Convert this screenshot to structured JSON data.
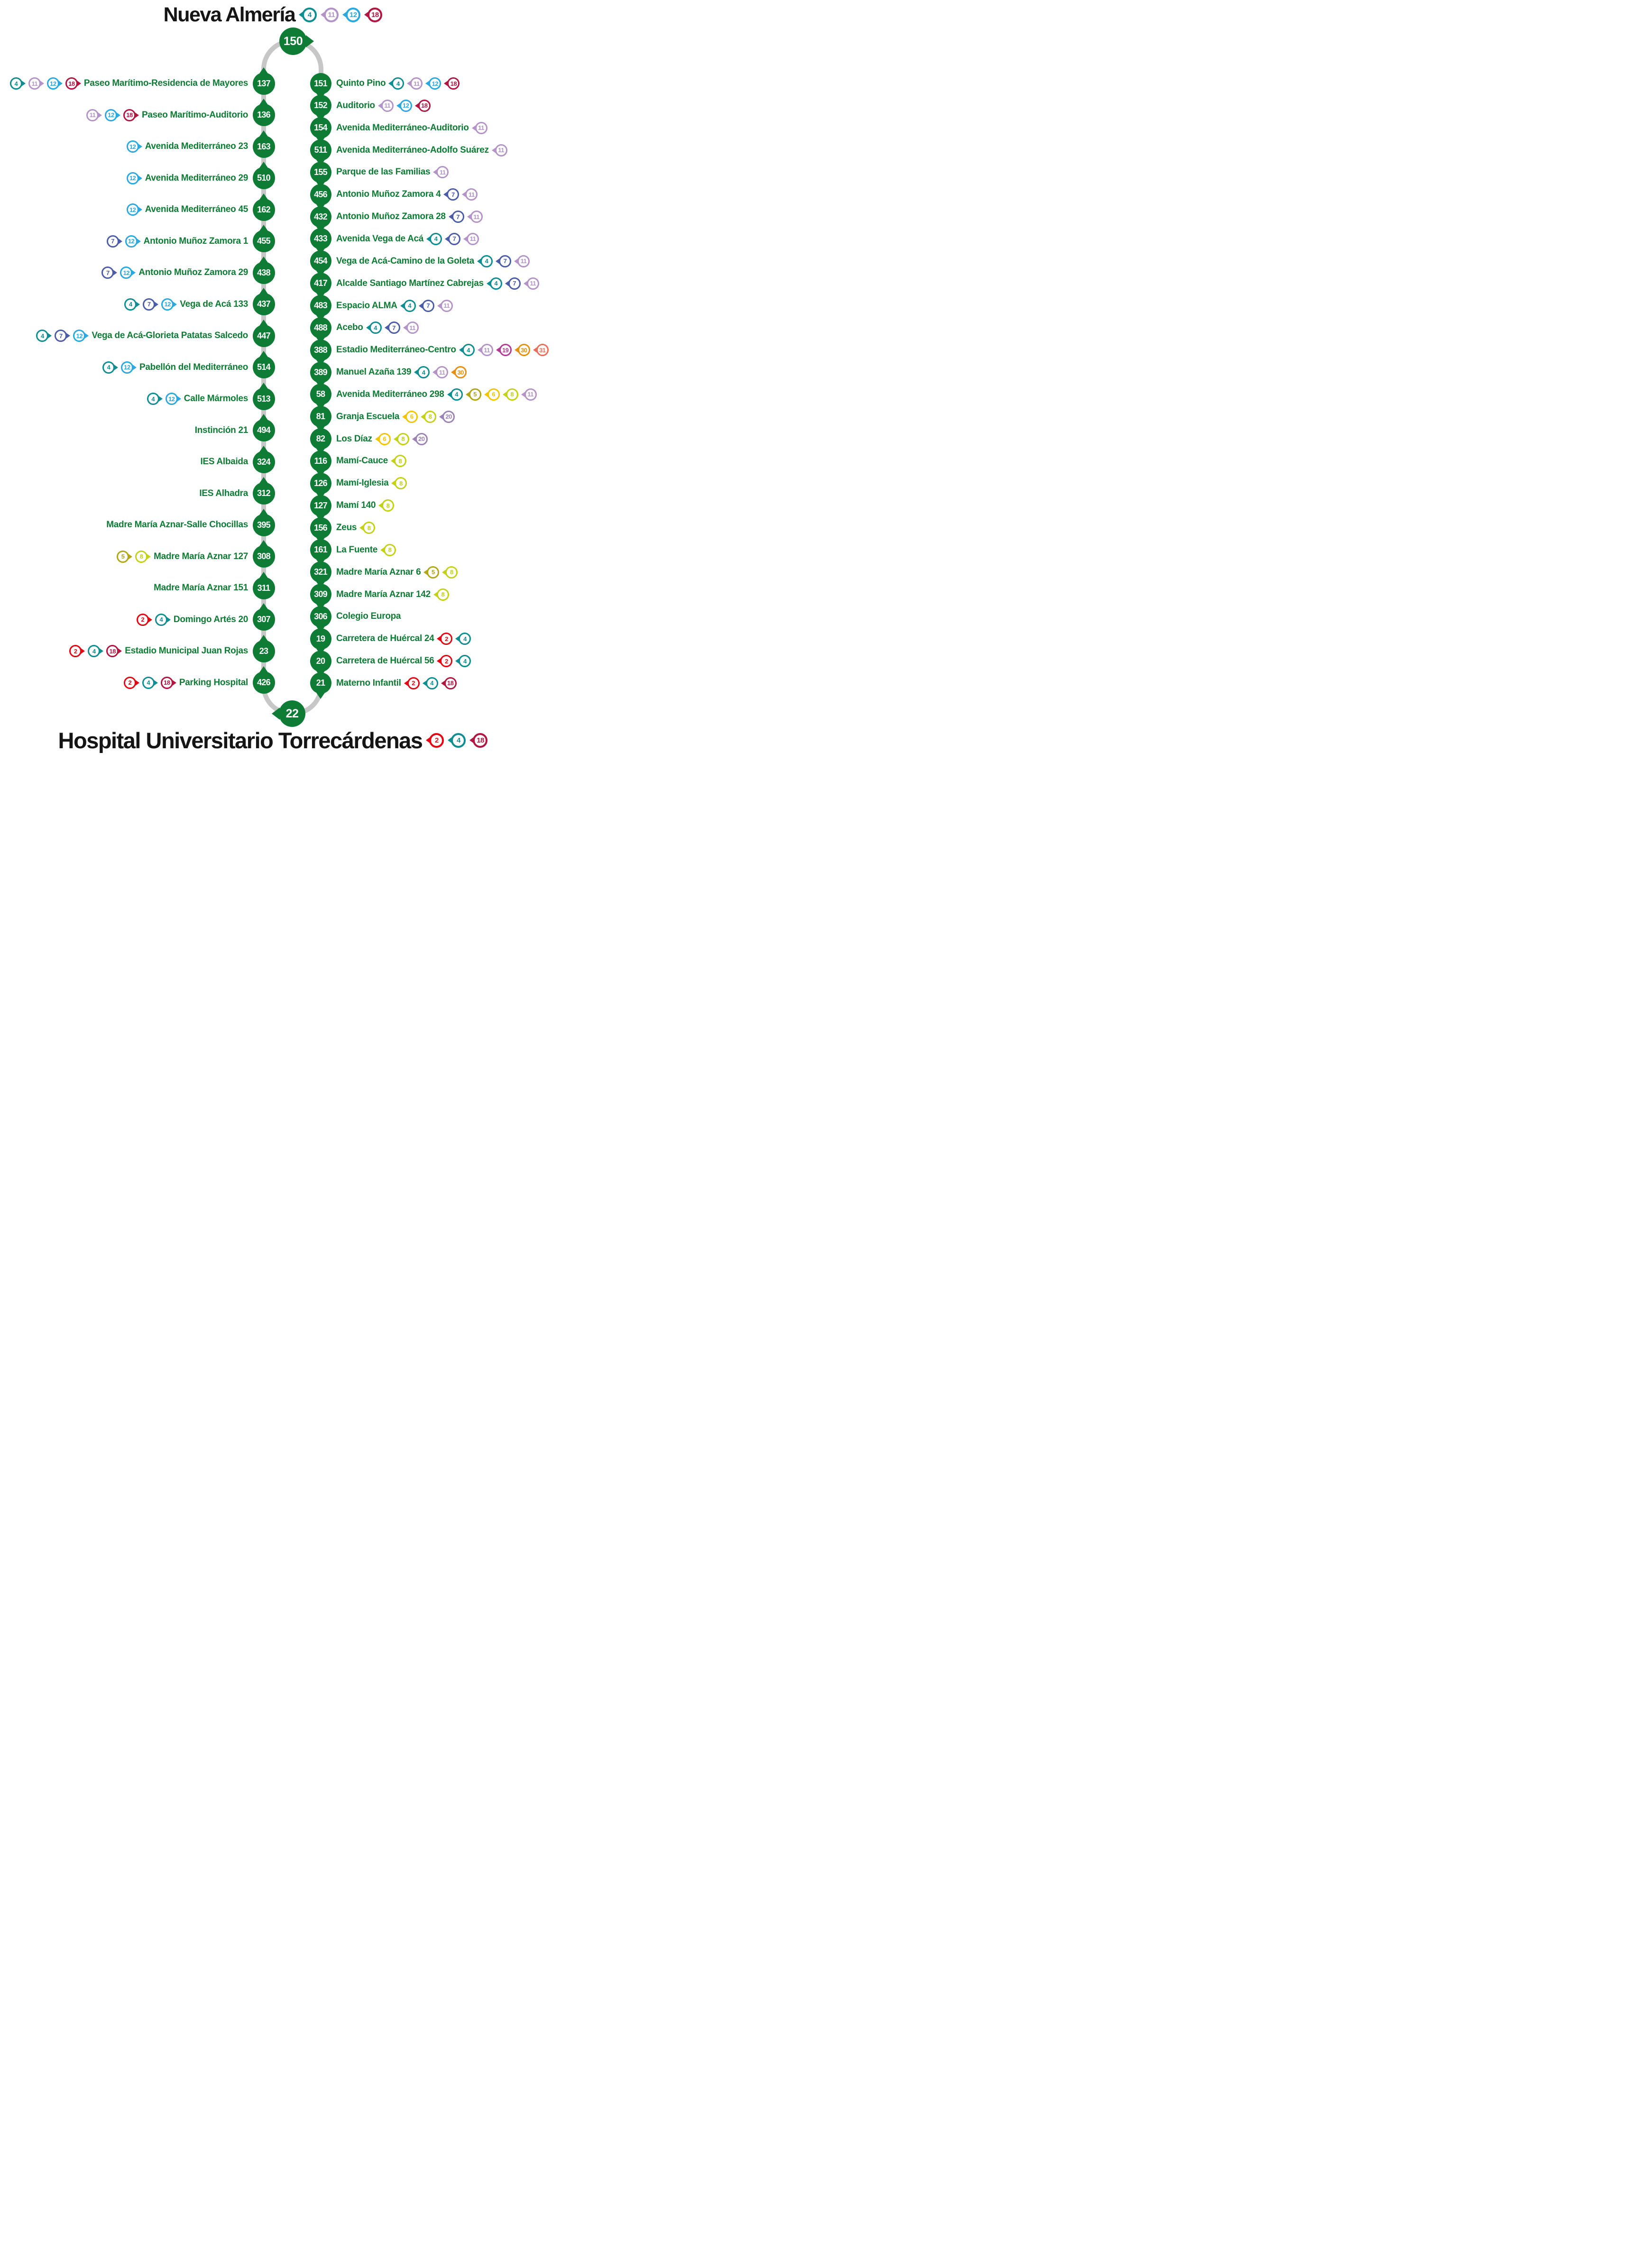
{
  "colors": {
    "green": "#0f7c35",
    "spine": "#c7c7c7",
    "title": "#151515",
    "lines": {
      "2": "#e30613",
      "4": "#0e8d92",
      "5": "#b0a616",
      "6": "#f2c500",
      "7": "#4b5ca9",
      "8": "#c3d117",
      "11": "#b493c8",
      "12": "#2aa9e0",
      "18": "#b2153f",
      "19": "#b43a98",
      "20": "#9d82b5",
      "30": "#e8900e",
      "31": "#ed6e56"
    }
  },
  "top_terminal": {
    "node": "150",
    "title": "Nueva Almería",
    "lines": [
      "4",
      "11",
      "12",
      "18"
    ]
  },
  "bottom_terminal": {
    "node": "22",
    "title": "Hospital Universitario Torrecárdenas",
    "lines": [
      "2",
      "4",
      "18"
    ]
  },
  "left_stops": [
    {
      "code": "137",
      "name": "Paseo Marítimo-Residencia de Mayores",
      "lines": [
        "4",
        "11",
        "12",
        "18"
      ]
    },
    {
      "code": "136",
      "name": "Paseo Marítimo-Auditorio",
      "lines": [
        "11",
        "12",
        "18"
      ]
    },
    {
      "code": "163",
      "name": "Avenida Mediterráneo 23",
      "lines": [
        "12"
      ]
    },
    {
      "code": "510",
      "name": "Avenida Mediterráneo 29",
      "lines": [
        "12"
      ]
    },
    {
      "code": "162",
      "name": "Avenida Mediterráneo 45",
      "lines": [
        "12"
      ]
    },
    {
      "code": "455",
      "name": "Antonio Muñoz Zamora 1",
      "lines": [
        "7",
        "12"
      ]
    },
    {
      "code": "438",
      "name": "Antonio Muñoz Zamora 29",
      "lines": [
        "7",
        "12"
      ]
    },
    {
      "code": "437",
      "name": "Vega de Acá 133",
      "lines": [
        "4",
        "7",
        "12"
      ]
    },
    {
      "code": "447",
      "name": "Vega de Acá-Glorieta Patatas Salcedo",
      "lines": [
        "4",
        "7",
        "12"
      ]
    },
    {
      "code": "514",
      "name": "Pabellón del Mediterráneo",
      "lines": [
        "4",
        "12"
      ]
    },
    {
      "code": "513",
      "name": "Calle Mármoles",
      "lines": [
        "4",
        "12"
      ]
    },
    {
      "code": "494",
      "name": "Instinción 21",
      "lines": []
    },
    {
      "code": "324",
      "name": "IES Albaida",
      "lines": []
    },
    {
      "code": "312",
      "name": "IES Alhadra",
      "lines": []
    },
    {
      "code": "395",
      "name": "Madre María Aznar-Salle Chocillas",
      "lines": []
    },
    {
      "code": "308",
      "name": "Madre María Aznar 127",
      "lines": [
        "5",
        "8"
      ]
    },
    {
      "code": "311",
      "name": "Madre María Aznar 151",
      "lines": []
    },
    {
      "code": "307",
      "name": "Domingo Artés 20",
      "lines": [
        "2",
        "4"
      ]
    },
    {
      "code": "23",
      "name": "Estadio Municipal Juan Rojas",
      "lines": [
        "2",
        "4",
        "18"
      ]
    },
    {
      "code": "426",
      "name": "Parking Hospital",
      "lines": [
        "2",
        "4",
        "18"
      ]
    }
  ],
  "right_stops": [
    {
      "code": "151",
      "name": "Quinto Pino",
      "lines": [
        "4",
        "11",
        "12",
        "18"
      ]
    },
    {
      "code": "152",
      "name": "Auditorio",
      "lines": [
        "11",
        "12",
        "18"
      ]
    },
    {
      "code": "154",
      "name": "Avenida Mediterráneo-Auditorio",
      "lines": [
        "11"
      ]
    },
    {
      "code": "511",
      "name": "Avenida Mediterráneo-Adolfo Suárez",
      "lines": [
        "11"
      ]
    },
    {
      "code": "155",
      "name": "Parque de las Familias",
      "lines": [
        "11"
      ]
    },
    {
      "code": "456",
      "name": "Antonio Muñoz Zamora 4",
      "lines": [
        "7",
        "11"
      ]
    },
    {
      "code": "432",
      "name": "Antonio Muñoz Zamora 28",
      "lines": [
        "7",
        "11"
      ]
    },
    {
      "code": "433",
      "name": "Avenida Vega de Acá",
      "lines": [
        "4",
        "7",
        "11"
      ]
    },
    {
      "code": "454",
      "name": "Vega de Acá-Camino de la Goleta",
      "lines": [
        "4",
        "7",
        "11"
      ]
    },
    {
      "code": "417",
      "name": "Alcalde Santiago Martínez Cabrejas",
      "lines": [
        "4",
        "7",
        "11"
      ]
    },
    {
      "code": "483",
      "name": "Espacio ALMA",
      "lines": [
        "4",
        "7",
        "11"
      ]
    },
    {
      "code": "488",
      "name": "Acebo",
      "lines": [
        "4",
        "7",
        "11"
      ]
    },
    {
      "code": "388",
      "name": "Estadio Mediterráneo-Centro",
      "lines": [
        "4",
        "11",
        "19",
        "30",
        "31"
      ]
    },
    {
      "code": "389",
      "name": "Manuel Azaña 139",
      "lines": [
        "4",
        "11",
        "30"
      ]
    },
    {
      "code": "58",
      "name": "Avenida Mediterráneo 298",
      "lines": [
        "4",
        "5",
        "6",
        "8",
        "11"
      ]
    },
    {
      "code": "81",
      "name": "Granja Escuela",
      "lines": [
        "6",
        "8",
        "20"
      ]
    },
    {
      "code": "82",
      "name": "Los Díaz",
      "lines": [
        "6",
        "8",
        "20"
      ]
    },
    {
      "code": "116",
      "name": "Mamí-Cauce",
      "lines": [
        "8"
      ]
    },
    {
      "code": "126",
      "name": "Mamí-Iglesia",
      "lines": [
        "8"
      ]
    },
    {
      "code": "127",
      "name": "Mamí 140",
      "lines": [
        "8"
      ]
    },
    {
      "code": "156",
      "name": "Zeus",
      "lines": [
        "8"
      ]
    },
    {
      "code": "161",
      "name": "La Fuente",
      "lines": [
        "8"
      ]
    },
    {
      "code": "321",
      "name": "Madre María Aznar 6",
      "lines": [
        "5",
        "8"
      ]
    },
    {
      "code": "309",
      "name": "Madre María Aznar 142",
      "lines": [
        "8"
      ]
    },
    {
      "code": "306",
      "name": "Colegio Europa",
      "lines": []
    },
    {
      "code": "19",
      "name": "Carretera de Huércal 24",
      "lines": [
        "2",
        "4"
      ]
    },
    {
      "code": "20",
      "name": "Carretera de Huércal 56",
      "lines": [
        "2",
        "4"
      ]
    },
    {
      "code": "21",
      "name": "Materno Infantil",
      "lines": [
        "2",
        "4",
        "18"
      ]
    }
  ]
}
